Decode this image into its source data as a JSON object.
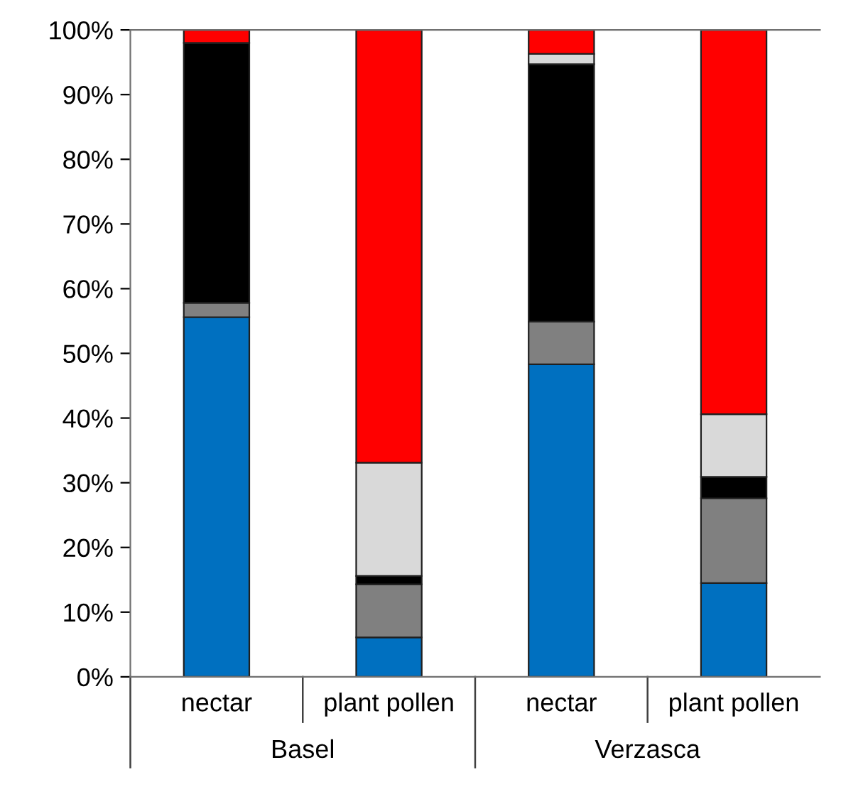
{
  "chart_data": {
    "type": "bar",
    "stacked": true,
    "categories": [
      "nectar",
      "plant pollen",
      "nectar",
      "plant pollen"
    ],
    "series": [
      {
        "color": "#0070c0",
        "values": [
          55.6,
          6.1,
          48.3,
          14.5
        ]
      },
      {
        "color": "#808080",
        "values": [
          2.2,
          8.2,
          6.6,
          13.1
        ]
      },
      {
        "color": "#000000",
        "values": [
          40.2,
          1.3,
          39.8,
          3.3
        ]
      },
      {
        "color": "#d9d9d9",
        "values": [
          0,
          17.5,
          1.6,
          9.7
        ]
      },
      {
        "color": "#ff0000",
        "values": [
          2.0,
          66.9,
          3.7,
          59.4
        ]
      }
    ],
    "ylim": [
      0,
      100
    ],
    "yticks": [
      {
        "value": 0,
        "label": "0%"
      },
      {
        "value": 10,
        "label": "10%"
      },
      {
        "value": 20,
        "label": "20%"
      },
      {
        "value": 30,
        "label": "30%"
      },
      {
        "value": 40,
        "label": "40%"
      },
      {
        "value": 50,
        "label": "50%"
      },
      {
        "value": 60,
        "label": "60%"
      },
      {
        "value": 70,
        "label": "70%"
      },
      {
        "value": 80,
        "label": "80%"
      },
      {
        "value": 90,
        "label": "90%"
      },
      {
        "value": 100,
        "label": "100%"
      }
    ],
    "annotations": [
      "Basel",
      "Verzasca"
    ],
    "grid": false,
    "legend": false
  }
}
